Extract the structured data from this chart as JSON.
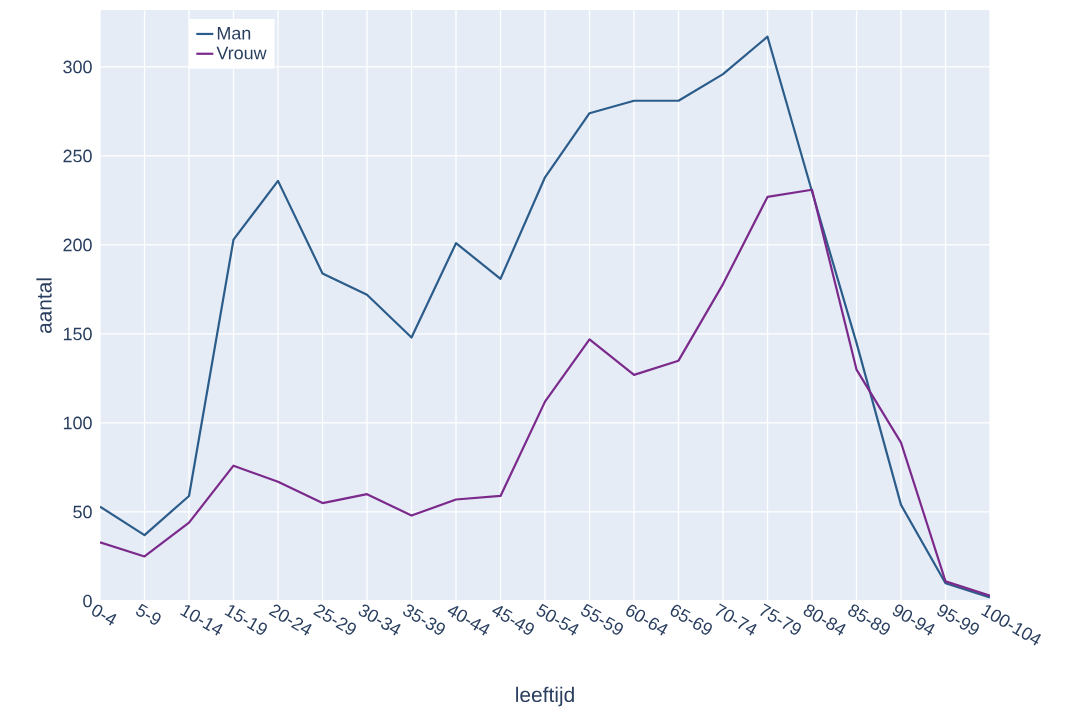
{
  "chart_data": {
    "type": "line",
    "xlabel": "leeftijd",
    "ylabel": "aantal",
    "categories": [
      "0-4",
      "5-9",
      "10-14",
      "15-19",
      "20-24",
      "25-29",
      "30-34",
      "35-39",
      "40-44",
      "45-49",
      "50-54",
      "55-59",
      "60-64",
      "65-69",
      "70-74",
      "75-79",
      "80-84",
      "85-89",
      "90-94",
      "95-99",
      "100-104"
    ],
    "series": [
      {
        "name": "Man",
        "color": "#2b5c8a",
        "values": [
          53,
          37,
          59,
          203,
          236,
          184,
          172,
          148,
          201,
          181,
          238,
          274,
          281,
          281,
          296,
          317,
          230,
          145,
          54,
          10,
          2
        ]
      },
      {
        "name": "Vrouw",
        "color": "#7b2a8c",
        "values": [
          33,
          25,
          44,
          76,
          67,
          55,
          60,
          48,
          57,
          59,
          112,
          147,
          127,
          135,
          178,
          227,
          231,
          130,
          89,
          11,
          3
        ]
      }
    ],
    "ylim": [
      0,
      332
    ],
    "yticks": [
      0,
      50,
      100,
      150,
      200,
      250,
      300
    ],
    "grid": true,
    "legend": "top left",
    "marker": "none",
    "line_style": "solid"
  }
}
